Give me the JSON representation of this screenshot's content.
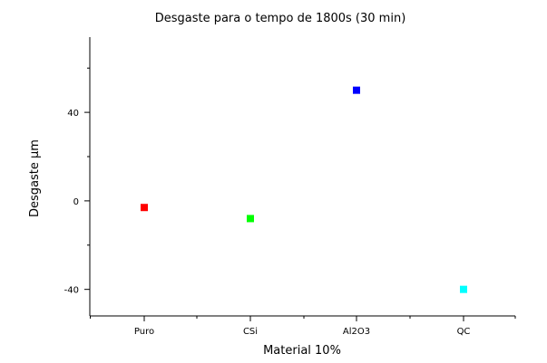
{
  "chart_data": {
    "type": "scatter",
    "title": "Desgaste para o tempo de 1800s (30 min)",
    "xlabel": "Material 10%",
    "ylabel": "Desgaste µm",
    "categories": [
      "Puro",
      "CSi",
      "Al2O3",
      "QC"
    ],
    "values": [
      -3,
      -8,
      50,
      -40
    ],
    "point_colors": [
      "#ff0000",
      "#00ff00",
      "#0000ff",
      "#00ffff"
    ],
    "ylim": [
      -52,
      74
    ],
    "yticks": [
      -40,
      0,
      40
    ],
    "ytick_labels": [
      "-40",
      "0",
      "40"
    ],
    "grid": false,
    "legend": "none"
  }
}
